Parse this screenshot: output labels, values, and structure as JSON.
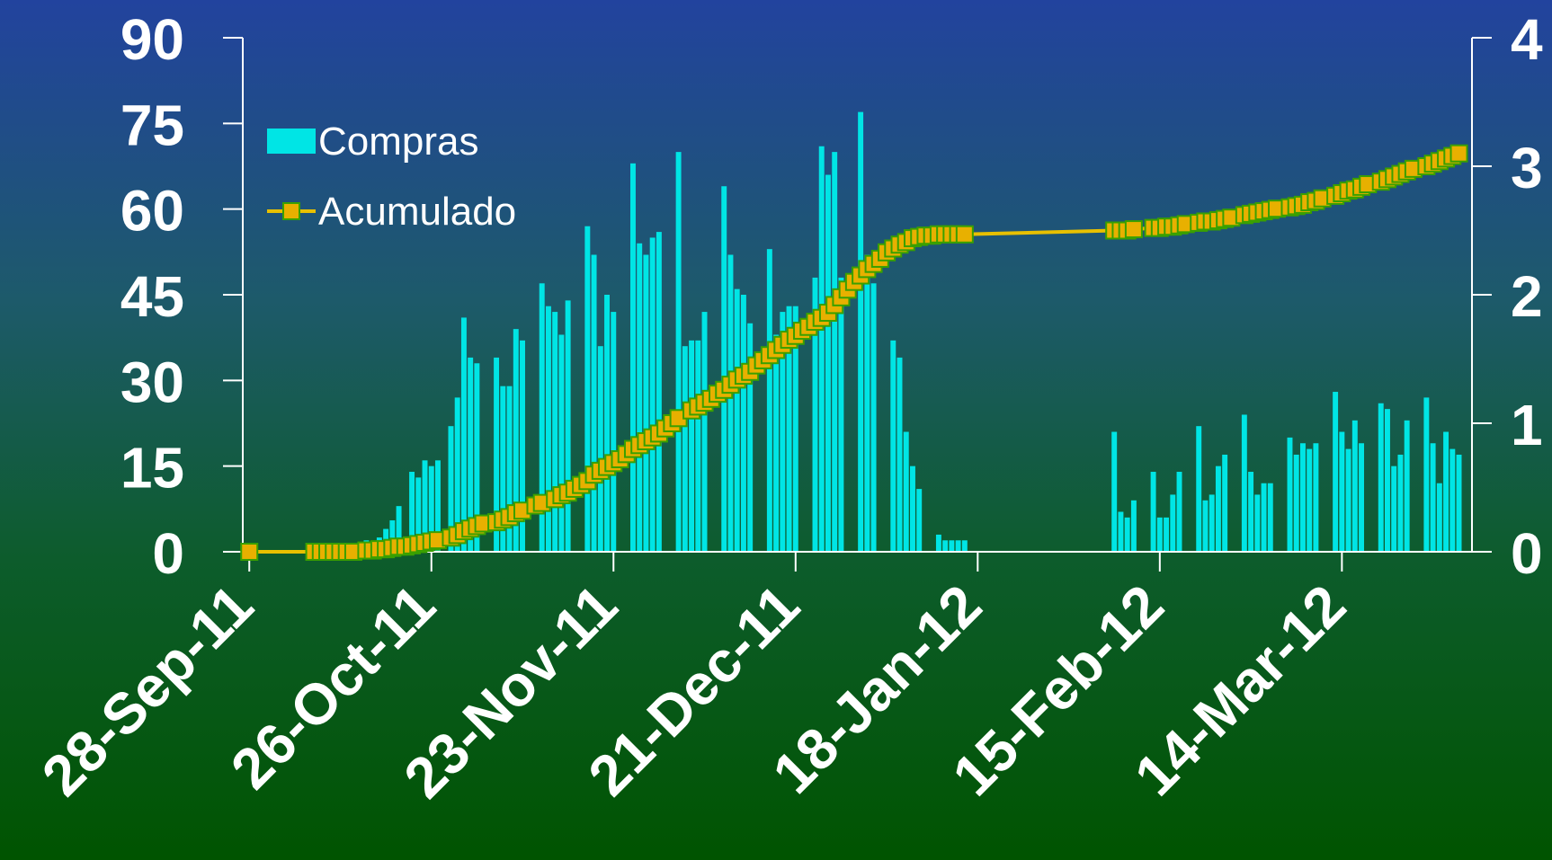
{
  "chart_data": {
    "type": "bar+line",
    "x_start_date": "2011-09-28",
    "xticks": [
      "28-Sep-11",
      "26-Oct-11",
      "23-Nov-11",
      "21-Dec-11",
      "18-Jan-12",
      "15-Feb-12",
      "14-Mar-12"
    ],
    "ylim_left": [
      0,
      90
    ],
    "yticks_left": [
      0,
      15,
      30,
      45,
      60,
      75,
      90
    ],
    "ylim_right": [
      0,
      4
    ],
    "yticks_right": [
      0,
      1,
      2,
      3,
      4
    ],
    "legend": {
      "placement": "top-left",
      "entries": [
        "Compras",
        "Acumulado"
      ]
    },
    "colors": {
      "bars": "#00e5e5",
      "line": "#e8c000",
      "marker_fill": "#e8b000",
      "marker_edge": "#3aa000",
      "text": "#ffffff"
    },
    "series": [
      {
        "name": "Compras",
        "type": "bar",
        "axis": "left",
        "points": [
          [
            18,
            2
          ],
          [
            19,
            1.5
          ],
          [
            20,
            2.5
          ],
          [
            21,
            4
          ],
          [
            22,
            5.5
          ],
          [
            23,
            8
          ],
          [
            24,
            0.5
          ],
          [
            25,
            14
          ],
          [
            26,
            13
          ],
          [
            27,
            16
          ],
          [
            28,
            15
          ],
          [
            29,
            16
          ],
          [
            31,
            22
          ],
          [
            32,
            27
          ],
          [
            33,
            41
          ],
          [
            34,
            34
          ],
          [
            35,
            33
          ],
          [
            38,
            34
          ],
          [
            39,
            29
          ],
          [
            40,
            29
          ],
          [
            41,
            39
          ],
          [
            42,
            37
          ],
          [
            45,
            47
          ],
          [
            46,
            43
          ],
          [
            47,
            42
          ],
          [
            48,
            38
          ],
          [
            49,
            44
          ],
          [
            52,
            57
          ],
          [
            53,
            52
          ],
          [
            54,
            36
          ],
          [
            55,
            45
          ],
          [
            56,
            42
          ],
          [
            59,
            68
          ],
          [
            60,
            54
          ],
          [
            61,
            52
          ],
          [
            62,
            55
          ],
          [
            63,
            56
          ],
          [
            66,
            70
          ],
          [
            67,
            36
          ],
          [
            68,
            37
          ],
          [
            69,
            37
          ],
          [
            70,
            42
          ],
          [
            73,
            64
          ],
          [
            74,
            52
          ],
          [
            75,
            46
          ],
          [
            76,
            45
          ],
          [
            77,
            40
          ],
          [
            80,
            53
          ],
          [
            81,
            38
          ],
          [
            82,
            42
          ],
          [
            83,
            43
          ],
          [
            84,
            43
          ],
          [
            87,
            48
          ],
          [
            88,
            71
          ],
          [
            89,
            66
          ],
          [
            90,
            70
          ],
          [
            91,
            48
          ],
          [
            94,
            77
          ],
          [
            95,
            52
          ],
          [
            96,
            47
          ],
          [
            99,
            37
          ],
          [
            100,
            34
          ],
          [
            101,
            21
          ],
          [
            102,
            15
          ],
          [
            103,
            11
          ],
          [
            106,
            3
          ],
          [
            107,
            2
          ],
          [
            108,
            2
          ],
          [
            109,
            2
          ],
          [
            110,
            2
          ],
          [
            133,
            21
          ],
          [
            134,
            7
          ],
          [
            135,
            6
          ],
          [
            136,
            9
          ],
          [
            139,
            14
          ],
          [
            140,
            6
          ],
          [
            141,
            6
          ],
          [
            142,
            10
          ],
          [
            143,
            14
          ],
          [
            146,
            22
          ],
          [
            147,
            9
          ],
          [
            148,
            10
          ],
          [
            149,
            15
          ],
          [
            150,
            17
          ],
          [
            153,
            24
          ],
          [
            154,
            14
          ],
          [
            155,
            10
          ],
          [
            156,
            12
          ],
          [
            157,
            12
          ],
          [
            160,
            20
          ],
          [
            161,
            17
          ],
          [
            162,
            19
          ],
          [
            163,
            18
          ],
          [
            164,
            19
          ],
          [
            167,
            28
          ],
          [
            168,
            21
          ],
          [
            169,
            18
          ],
          [
            170,
            23
          ],
          [
            171,
            19
          ],
          [
            174,
            26
          ],
          [
            175,
            25
          ],
          [
            176,
            15
          ],
          [
            177,
            17
          ],
          [
            178,
            23
          ],
          [
            181,
            27
          ],
          [
            182,
            19
          ],
          [
            183,
            12
          ],
          [
            184,
            21
          ],
          [
            185,
            18
          ],
          [
            186,
            17
          ]
        ]
      },
      {
        "name": "Acumulado",
        "type": "line",
        "axis": "right",
        "points": [
          [
            0,
            0
          ],
          [
            10,
            0
          ],
          [
            11,
            0
          ],
          [
            12,
            0
          ],
          [
            13,
            0
          ],
          [
            14,
            0
          ],
          [
            15,
            0
          ],
          [
            16,
            0
          ],
          [
            18,
            0.01
          ],
          [
            19,
            0.01
          ],
          [
            20,
            0.02
          ],
          [
            21,
            0.02
          ],
          [
            22,
            0.03
          ],
          [
            23,
            0.04
          ],
          [
            24,
            0.04
          ],
          [
            25,
            0.05
          ],
          [
            26,
            0.06
          ],
          [
            27,
            0.07
          ],
          [
            28,
            0.08
          ],
          [
            29,
            0.09
          ],
          [
            31,
            0.11
          ],
          [
            32,
            0.13
          ],
          [
            33,
            0.16
          ],
          [
            34,
            0.18
          ],
          [
            35,
            0.2
          ],
          [
            36,
            0.22
          ],
          [
            38,
            0.23
          ],
          [
            39,
            0.25
          ],
          [
            40,
            0.27
          ],
          [
            41,
            0.3
          ],
          [
            42,
            0.32
          ],
          [
            44,
            0.36
          ],
          [
            45,
            0.38
          ],
          [
            47,
            0.41
          ],
          [
            48,
            0.44
          ],
          [
            49,
            0.46
          ],
          [
            50,
            0.49
          ],
          [
            51,
            0.52
          ],
          [
            52,
            0.55
          ],
          [
            53,
            0.6
          ],
          [
            54,
            0.63
          ],
          [
            55,
            0.66
          ],
          [
            56,
            0.69
          ],
          [
            57,
            0.72
          ],
          [
            58,
            0.76
          ],
          [
            59,
            0.8
          ],
          [
            60,
            0.83
          ],
          [
            61,
            0.86
          ],
          [
            62,
            0.89
          ],
          [
            63,
            0.92
          ],
          [
            64,
            0.96
          ],
          [
            65,
            1.0
          ],
          [
            66,
            1.04
          ],
          [
            68,
            1.1
          ],
          [
            69,
            1.13
          ],
          [
            70,
            1.16
          ],
          [
            71,
            1.19
          ],
          [
            72,
            1.23
          ],
          [
            73,
            1.26
          ],
          [
            74,
            1.3
          ],
          [
            75,
            1.34
          ],
          [
            76,
            1.37
          ],
          [
            77,
            1.4
          ],
          [
            78,
            1.45
          ],
          [
            79,
            1.49
          ],
          [
            80,
            1.53
          ],
          [
            81,
            1.57
          ],
          [
            82,
            1.61
          ],
          [
            83,
            1.65
          ],
          [
            84,
            1.68
          ],
          [
            85,
            1.72
          ],
          [
            86,
            1.75
          ],
          [
            87,
            1.79
          ],
          [
            88,
            1.82
          ],
          [
            89,
            1.86
          ],
          [
            90,
            1.92
          ],
          [
            91,
            1.98
          ],
          [
            92,
            2.04
          ],
          [
            93,
            2.1
          ],
          [
            94,
            2.15
          ],
          [
            95,
            2.2
          ],
          [
            96,
            2.24
          ],
          [
            97,
            2.28
          ],
          [
            98,
            2.33
          ],
          [
            99,
            2.36
          ],
          [
            100,
            2.39
          ],
          [
            101,
            2.41
          ],
          [
            102,
            2.44
          ],
          [
            103,
            2.45
          ],
          [
            104,
            2.46
          ],
          [
            105,
            2.46
          ],
          [
            106,
            2.47
          ],
          [
            107,
            2.47
          ],
          [
            108,
            2.47
          ],
          [
            109,
            2.47
          ],
          [
            110,
            2.47
          ],
          [
            133,
            2.5
          ],
          [
            134,
            2.5
          ],
          [
            135,
            2.5
          ],
          [
            136,
            2.51
          ],
          [
            139,
            2.52
          ],
          [
            140,
            2.52
          ],
          [
            141,
            2.53
          ],
          [
            142,
            2.53
          ],
          [
            143,
            2.54
          ],
          [
            144,
            2.55
          ],
          [
            146,
            2.56
          ],
          [
            147,
            2.57
          ],
          [
            148,
            2.57
          ],
          [
            149,
            2.58
          ],
          [
            150,
            2.59
          ],
          [
            151,
            2.6
          ],
          [
            153,
            2.62
          ],
          [
            154,
            2.63
          ],
          [
            155,
            2.64
          ],
          [
            156,
            2.65
          ],
          [
            157,
            2.66
          ],
          [
            158,
            2.67
          ],
          [
            160,
            2.68
          ],
          [
            161,
            2.69
          ],
          [
            162,
            2.7
          ],
          [
            163,
            2.72
          ],
          [
            164,
            2.73
          ],
          [
            165,
            2.75
          ],
          [
            167,
            2.77
          ],
          [
            168,
            2.79
          ],
          [
            169,
            2.81
          ],
          [
            170,
            2.82
          ],
          [
            171,
            2.84
          ],
          [
            172,
            2.86
          ],
          [
            174,
            2.88
          ],
          [
            175,
            2.9
          ],
          [
            176,
            2.92
          ],
          [
            177,
            2.94
          ],
          [
            178,
            2.96
          ],
          [
            179,
            2.98
          ],
          [
            181,
            3.0
          ],
          [
            182,
            3.02
          ],
          [
            183,
            3.04
          ],
          [
            184,
            3.06
          ],
          [
            185,
            3.08
          ],
          [
            186,
            3.1
          ]
        ]
      }
    ]
  }
}
